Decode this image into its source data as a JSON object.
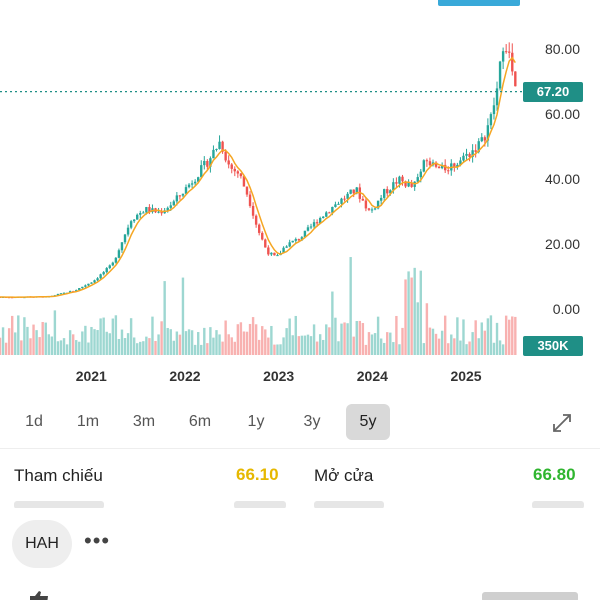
{
  "chart_data": {
    "type": "candlestick",
    "x_ticks": [
      "2021",
      "2022",
      "2023",
      "2024",
      "2025"
    ],
    "y_ticks": [
      "80.00",
      "60.00",
      "40.00",
      "20.00",
      "0.00"
    ],
    "ylim": [
      -14,
      95
    ],
    "grid": false,
    "x": [
      2020.5,
      2020.8,
      2021.0,
      2021.2,
      2021.4,
      2021.55,
      2021.7,
      2021.85,
      2022.0,
      2022.2,
      2022.35,
      2022.45,
      2022.55,
      2022.65,
      2022.75,
      2022.85,
      2022.95,
      2023.05,
      2023.2,
      2023.4,
      2023.6,
      2023.8,
      2023.95,
      2024.1,
      2024.25,
      2024.4,
      2024.55,
      2024.7,
      2024.85,
      2025.0,
      2025.15,
      2025.25,
      2025.32,
      2025.38,
      2025.45,
      2025.5
    ],
    "close": [
      4,
      6,
      9,
      14,
      28,
      31,
      30,
      33,
      38,
      45,
      52,
      44,
      42,
      35,
      25,
      18,
      16,
      20,
      22,
      28,
      33,
      37,
      30,
      36,
      40,
      38,
      46,
      43,
      45,
      48,
      52,
      60,
      70,
      85,
      76,
      67.2
    ],
    "current_price": "67.20",
    "volume_label": "350K",
    "tag_color": "#1f8f86",
    "up_color": "#26a69a",
    "down_color": "#ef5350",
    "ma_color": "#f5a623"
  },
  "timeframes": [
    "1d",
    "1m",
    "3m",
    "6m",
    "1y",
    "3y",
    "5y"
  ],
  "active_timeframe": "5y",
  "stats": {
    "reference_label": "Tham chiếu",
    "reference_value": "66.10",
    "open_label": "Mở cửa",
    "open_value": "66.80",
    "reference_color": "#e6b800",
    "open_color": "#2fb52f"
  },
  "ticker": "HAH",
  "icons": {
    "expand": "expand-icon",
    "more": "more-icon"
  }
}
